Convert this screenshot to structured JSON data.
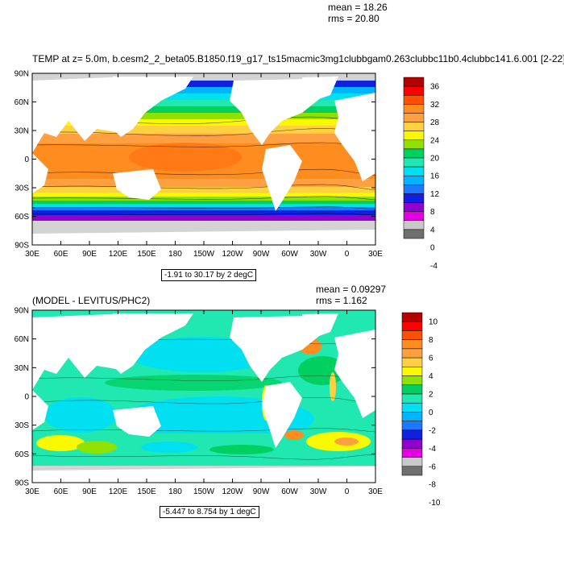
{
  "colors": {
    "land": "#ffffff",
    "sea_ice": "#d3d3d3",
    "frame": "#000000",
    "top_scale": [
      "#6f6f6f",
      "#c8c8c8",
      "#e000e0",
      "#9000d0",
      "#1020e0",
      "#1e78ff",
      "#00b4ff",
      "#00e0f0",
      "#20e8b0",
      "#00d060",
      "#90e000",
      "#f8f800",
      "#ffd040",
      "#ffa040",
      "#ff8c1e",
      "#ff5000",
      "#ff0000",
      "#b40000"
    ],
    "bottom_scale": [
      "#6f6f6f",
      "#c8c8c8",
      "#e000e0",
      "#9000d0",
      "#1020e0",
      "#1e78ff",
      "#00b4ff",
      "#00e0f0",
      "#20e8b0",
      "#00d060",
      "#90e000",
      "#f8f800",
      "#ffd040",
      "#ffa040",
      "#ff8c1e",
      "#ff5000",
      "#ff0000",
      "#b40000"
    ]
  },
  "axes": {
    "lat_labels": [
      "90N",
      "60N",
      "30N",
      "0",
      "30S",
      "60S",
      "90S"
    ],
    "lon_labels": [
      "30E",
      "60E",
      "90E",
      "120E",
      "150E",
      "180",
      "150W",
      "120W",
      "90W",
      "60W",
      "30W",
      "0",
      "30E"
    ]
  },
  "top_panel": {
    "title": "TEMP at z=   5.0m, b.cesm2_2_beta05.B1850.f19_g17_ts15macmic3mg1clubbgam0.263clubbc11b0.4clubbc141.6.001 [2-22]",
    "mean": "mean = 18.26",
    "rms": "rms = 20.80",
    "contour_info": "-1.91 to 30.17 by 2 degC",
    "colorbar_labels": [
      "36",
      "32",
      "28",
      "24",
      "20",
      "16",
      "12",
      "8",
      "4",
      "0",
      "-4"
    ]
  },
  "bottom_panel": {
    "title": "(MODEL - LEVITUS/PHC2)",
    "mean": "mean = 0.09297",
    "rms": "rms = 1.162",
    "contour_info": "-5.447 to 8.754 by 1 degC",
    "colorbar_labels": [
      "10",
      "8",
      "6",
      "4",
      "2",
      "0",
      "-2",
      "-4",
      "-6",
      "-8",
      "-10"
    ]
  }
}
